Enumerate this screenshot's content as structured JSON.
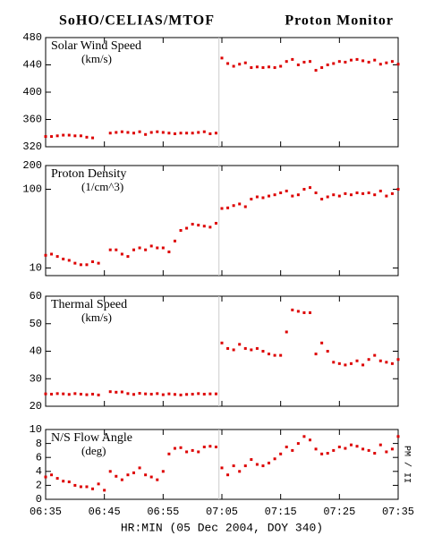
{
  "header": {
    "left": "SoHO/CELIAS/MTOF",
    "right": "Proton Monitor"
  },
  "chart_data": [
    {
      "type": "scatter",
      "ylabel": "Solar Wind Speed",
      "yunit": "(km/s)",
      "color": "#dd0000",
      "xlim": [
        0,
        60
      ],
      "xticks": [
        {
          "value": 0,
          "label": "06:35"
        },
        {
          "value": 10,
          "label": "06:45"
        },
        {
          "value": 20,
          "label": "06:55"
        },
        {
          "value": 30,
          "label": "07:05"
        },
        {
          "value": 40,
          "label": "07:15"
        },
        {
          "value": 50,
          "label": "07:25"
        },
        {
          "value": 60,
          "label": "07:35"
        }
      ],
      "vline": 29.5,
      "ylim": [
        320,
        480
      ],
      "yticks": [
        320,
        360,
        400,
        440,
        480
      ],
      "x": [
        0,
        1,
        2,
        3,
        4,
        5,
        6,
        7,
        8,
        9,
        10,
        11,
        12,
        13,
        14,
        15,
        16,
        17,
        18,
        19,
        20,
        21,
        22,
        23,
        24,
        25,
        26,
        27,
        28,
        29,
        30,
        31,
        32,
        33,
        34,
        35,
        36,
        37,
        38,
        39,
        40,
        41,
        42,
        43,
        44,
        45,
        46,
        47,
        48,
        49,
        50,
        51,
        52,
        53,
        54,
        55,
        56,
        57,
        58,
        59,
        60
      ],
      "values": [
        335,
        335,
        336,
        337,
        337,
        336,
        336,
        334,
        333,
        null,
        null,
        340,
        341,
        342,
        341,
        340,
        342,
        338,
        341,
        342,
        341,
        340,
        339,
        340,
        340,
        340,
        341,
        342,
        339,
        340,
        450,
        442,
        438,
        441,
        443,
        436,
        437,
        436,
        437,
        436,
        438,
        445,
        448,
        440,
        444,
        445,
        432,
        436,
        440,
        442,
        445,
        444,
        447,
        448,
        446,
        444,
        447,
        441,
        443,
        445,
        441
      ]
    },
    {
      "type": "scatter",
      "ylabel": "Proton Density",
      "yunit": "(1/cm^3)",
      "color": "#dd0000",
      "log": true,
      "xlim": [
        0,
        60
      ],
      "xticks": [
        {
          "value": 0,
          "label": "06:35"
        },
        {
          "value": 10,
          "label": "06:45"
        },
        {
          "value": 20,
          "label": "06:55"
        },
        {
          "value": 30,
          "label": "07:05"
        },
        {
          "value": 40,
          "label": "07:15"
        },
        {
          "value": 50,
          "label": "07:25"
        },
        {
          "value": 60,
          "label": "07:35"
        }
      ],
      "vline": 29.5,
      "ylim": [
        8,
        200
      ],
      "yticks": [
        10,
        100,
        200
      ],
      "x": [
        0,
        1,
        2,
        3,
        4,
        5,
        6,
        7,
        8,
        9,
        10,
        11,
        12,
        13,
        14,
        15,
        16,
        17,
        18,
        19,
        20,
        21,
        22,
        23,
        24,
        25,
        26,
        27,
        28,
        29,
        30,
        31,
        32,
        33,
        34,
        35,
        36,
        37,
        38,
        39,
        40,
        41,
        42,
        43,
        44,
        45,
        46,
        47,
        48,
        49,
        50,
        51,
        52,
        53,
        54,
        55,
        56,
        57,
        58,
        59,
        60
      ],
      "values": [
        14.5,
        15,
        14,
        13,
        12.5,
        11.5,
        11,
        11,
        12,
        11.5,
        null,
        17,
        17,
        15,
        14,
        17,
        18,
        17,
        19,
        18,
        18,
        16,
        22,
        30,
        32,
        36,
        35,
        34,
        33,
        37,
        57,
        58,
        62,
        65,
        60,
        75,
        80,
        78,
        82,
        85,
        90,
        95,
        82,
        85,
        100,
        105,
        90,
        75,
        80,
        85,
        82,
        88,
        85,
        90,
        88,
        90,
        85,
        95,
        82,
        88,
        100
      ]
    },
    {
      "type": "scatter",
      "ylabel": "Thermal Speed",
      "yunit": "(km/s)",
      "color": "#dd0000",
      "xlim": [
        0,
        60
      ],
      "xticks": [
        {
          "value": 0,
          "label": "06:35"
        },
        {
          "value": 10,
          "label": "06:45"
        },
        {
          "value": 20,
          "label": "06:55"
        },
        {
          "value": 30,
          "label": "07:05"
        },
        {
          "value": 40,
          "label": "07:15"
        },
        {
          "value": 50,
          "label": "07:25"
        },
        {
          "value": 60,
          "label": "07:35"
        }
      ],
      "vline": 29.5,
      "ylim": [
        20,
        60
      ],
      "yticks": [
        20,
        30,
        40,
        50,
        60
      ],
      "x": [
        0,
        1,
        2,
        3,
        4,
        5,
        6,
        7,
        8,
        9,
        10,
        11,
        12,
        13,
        14,
        15,
        16,
        17,
        18,
        19,
        20,
        21,
        22,
        23,
        24,
        25,
        26,
        27,
        28,
        29,
        30,
        31,
        32,
        33,
        34,
        35,
        36,
        37,
        38,
        39,
        40,
        41,
        42,
        43,
        44,
        45,
        46,
        47,
        48,
        49,
        50,
        51,
        52,
        53,
        54,
        55,
        56,
        57,
        58,
        59,
        60
      ],
      "values": [
        24.5,
        24.4,
        24.6,
        24.5,
        24.3,
        24.6,
        24.4,
        24.2,
        24.4,
        24.1,
        null,
        25.3,
        25.1,
        25.2,
        24.6,
        24.3,
        24.7,
        24.5,
        24.4,
        24.6,
        24.2,
        24.5,
        24.3,
        24.1,
        24.3,
        24.4,
        24.6,
        24.4,
        24.5,
        24.5,
        43,
        41,
        40.5,
        42.5,
        41,
        40.5,
        41,
        40,
        39,
        38.5,
        38.5,
        47,
        55,
        54.5,
        54,
        54,
        39,
        43,
        40,
        36,
        35.5,
        35,
        35.5,
        36.5,
        35,
        37,
        38.5,
        36.5,
        36,
        35.5,
        37
      ]
    },
    {
      "type": "scatter",
      "ylabel": "N/S Flow Angle",
      "yunit": "(deg)",
      "color": "#dd0000",
      "annotation": "PM / II",
      "xlabel": "HR:MIN (05 Dec 2004, DOY 340)",
      "xlim": [
        0,
        60
      ],
      "xticks": [
        {
          "value": 0,
          "label": "06:35"
        },
        {
          "value": 10,
          "label": "06:45"
        },
        {
          "value": 20,
          "label": "06:55"
        },
        {
          "value": 30,
          "label": "07:05"
        },
        {
          "value": 40,
          "label": "07:15"
        },
        {
          "value": 50,
          "label": "07:25"
        },
        {
          "value": 60,
          "label": "07:35"
        }
      ],
      "vline": 29.5,
      "ylim": [
        0,
        10
      ],
      "yticks": [
        0,
        2,
        4,
        6,
        8,
        10
      ],
      "x": [
        0,
        1,
        2,
        3,
        4,
        5,
        6,
        7,
        8,
        9,
        10,
        11,
        12,
        13,
        14,
        15,
        16,
        17,
        18,
        19,
        20,
        21,
        22,
        23,
        24,
        25,
        26,
        27,
        28,
        29,
        30,
        31,
        32,
        33,
        34,
        35,
        36,
        37,
        38,
        39,
        40,
        41,
        42,
        43,
        44,
        45,
        46,
        47,
        48,
        49,
        50,
        51,
        52,
        53,
        54,
        55,
        56,
        57,
        58,
        59,
        60
      ],
      "values": [
        3.2,
        3.5,
        3,
        2.6,
        2.5,
        2,
        1.8,
        1.8,
        1.5,
        2.2,
        1.3,
        4,
        3.3,
        2.8,
        3.5,
        3.8,
        4.5,
        3.5,
        3.2,
        2.8,
        4,
        6.5,
        7.3,
        7.4,
        6.8,
        7,
        6.8,
        7.5,
        7.6,
        7.5,
        4.5,
        3.5,
        4.8,
        4,
        4.8,
        5.7,
        5,
        4.8,
        5.2,
        5.8,
        6.5,
        7.5,
        7,
        8,
        9,
        8.5,
        7.2,
        6.5,
        6.6,
        7,
        7.5,
        7.3,
        7.8,
        7.6,
        7.2,
        7,
        6.6,
        7.8,
        6.8,
        7.2,
        9
      ]
    }
  ]
}
